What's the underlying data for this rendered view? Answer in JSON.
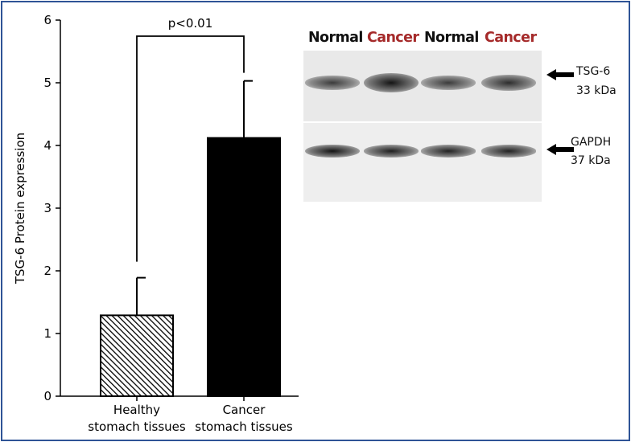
{
  "chart_data": {
    "type": "bar",
    "ylabel": "TSG-6 Protein expression",
    "xlabel": "",
    "ylim": [
      0,
      6
    ],
    "yticks": [
      "0",
      "1",
      "2",
      "3",
      "4",
      "5",
      "6"
    ],
    "categories": [
      {
        "line1": "Healthy",
        "line2": "stomach tissues"
      },
      {
        "line1": "Cancer",
        "line2": "stomach tissues"
      }
    ],
    "values": [
      1.29,
      4.12
    ],
    "error_upper": [
      1.89,
      5.03
    ],
    "bar_fills": [
      "hatched",
      "#000000"
    ],
    "significance": "p<0.01",
    "grid": false
  },
  "western_blot": {
    "lane_labels": [
      {
        "text": "Normal",
        "color": "#111111"
      },
      {
        "text": "Cancer",
        "color": "#a52a2a"
      },
      {
        "text": "Normal",
        "color": "#111111"
      },
      {
        "text": "Cancer",
        "color": "#a52a2a"
      }
    ],
    "bands": [
      {
        "name": "TSG-6",
        "size": "33 kDa"
      },
      {
        "name": "GAPDH",
        "size": "37 kDa"
      }
    ],
    "band_intensity": {
      "TSG-6": [
        0.45,
        1.0,
        0.45,
        0.65
      ],
      "GAPDH": [
        1.0,
        0.85,
        0.8,
        0.8
      ]
    }
  }
}
